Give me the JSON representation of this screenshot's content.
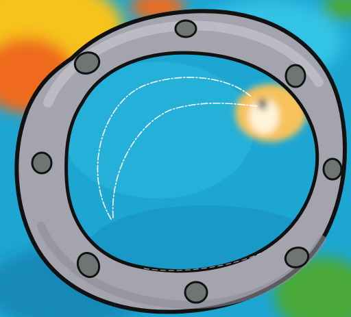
{
  "scene": {
    "subject": "porthole-window",
    "bolt_count": 8,
    "colors": {
      "water": "#1da6d2",
      "water_light": "#33c3e6",
      "water_deep": "#1389b8",
      "coral_orange": "#ef6a1a",
      "coral_yellow": "#f6c21c",
      "fish_yellow": "#f7c25a",
      "seaweed_green": "#4aa837",
      "porthole_ring": "#a3a4ae",
      "porthole_ring_highlight": "#c4c5cd",
      "porthole_ring_shadow": "#8d8e98",
      "bolt": "#6e7572",
      "outline": "#111111",
      "glass_glint": "#ffffff"
    },
    "icons": [
      "porthole-icon",
      "bolt-icon",
      "fish-icon",
      "coral-icon",
      "seaweed-icon",
      "glass-glint-icon"
    ]
  }
}
